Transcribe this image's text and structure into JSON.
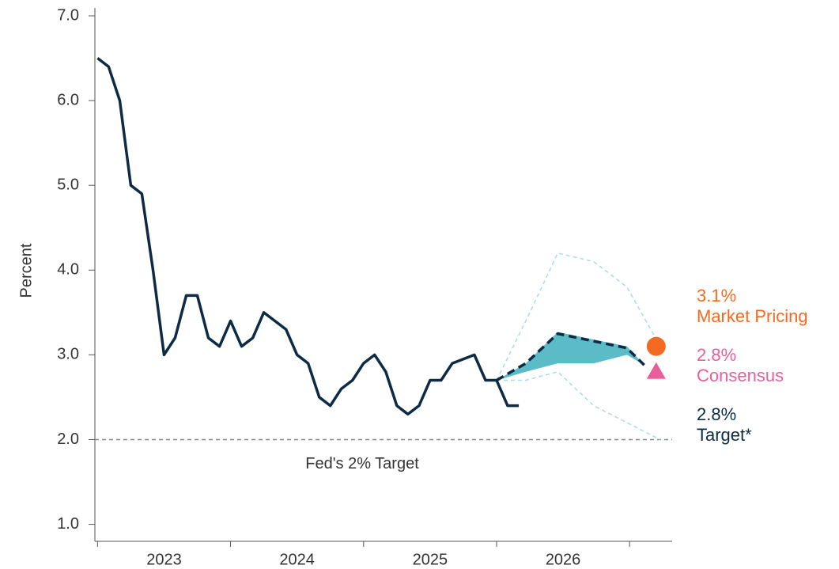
{
  "chart_data": {
    "type": "line",
    "ylabel": "Percent",
    "ylim": [
      0.8,
      7.0
    ],
    "yticks": [
      {
        "value": 1,
        "label": "1.0"
      },
      {
        "value": 2,
        "label": "2.0"
      },
      {
        "value": 3,
        "label": "3.0"
      },
      {
        "value": 4,
        "label": "4.0"
      },
      {
        "value": 5,
        "label": "5.0"
      },
      {
        "value": 6,
        "label": "6.0"
      },
      {
        "value": 7,
        "label": "7.0"
      }
    ],
    "xlim": [
      2022.98,
      2027.32
    ],
    "xticks": [
      2023,
      2024,
      2025,
      2026,
      2027
    ],
    "x_labels": [
      {
        "value": 2023.5,
        "label": "2023"
      },
      {
        "value": 2024.5,
        "label": "2024"
      },
      {
        "value": 2025.5,
        "label": "2025"
      },
      {
        "value": 2026.5,
        "label": "2026"
      }
    ],
    "series": [
      {
        "color": "#0d2b45",
        "dash": false,
        "x": [
          2023.0,
          2023.083,
          2023.167,
          2023.25,
          2023.333,
          2023.417,
          2023.5,
          2023.583,
          2023.667,
          2023.75,
          2023.833,
          2023.917,
          2024.0,
          2024.083,
          2024.167,
          2024.25,
          2024.333,
          2024.417,
          2024.5,
          2024.583,
          2024.667,
          2024.75,
          2024.833,
          2024.917,
          2025.0,
          2025.083,
          2025.167,
          2025.25,
          2025.333,
          2025.417,
          2025.5,
          2025.583,
          2025.667,
          2025.75,
          2025.833,
          2025.917,
          2026.0,
          2026.083,
          2026.167
        ],
        "values": [
          6.5,
          6.4,
          6.0,
          5.0,
          4.9,
          4.0,
          3.0,
          3.2,
          3.7,
          3.7,
          3.2,
          3.1,
          3.4,
          3.1,
          3.2,
          3.5,
          3.4,
          3.3,
          3.0,
          2.9,
          2.5,
          2.4,
          2.6,
          2.7,
          2.9,
          3.0,
          2.8,
          2.4,
          2.3,
          2.4,
          2.7,
          2.7,
          2.9,
          2.95,
          3.0,
          2.7,
          2.7,
          2.4,
          2.4
        ]
      },
      {
        "color": "#0d2b45",
        "dash": true,
        "x": [
          2026.0,
          2026.22,
          2026.46,
          2026.98,
          2027.11
        ],
        "values": [
          2.7,
          2.9,
          3.25,
          3.08,
          2.88
        ]
      }
    ],
    "band": {
      "color": "#5bbcc8",
      "x": [
        2026.0,
        2026.22,
        2026.46,
        2026.73,
        2026.98,
        2027.11
      ],
      "lower": [
        2.7,
        2.8,
        2.9,
        2.9,
        3.0,
        2.88
      ],
      "upper": [
        2.7,
        2.9,
        3.27,
        3.18,
        3.1,
        2.88
      ]
    },
    "range": {
      "color": "#a8dde3",
      "x": [
        2026.0,
        2026.22,
        2026.46,
        2026.73,
        2026.98,
        2027.23
      ],
      "lower": [
        2.7,
        2.7,
        2.8,
        2.4,
        2.2,
        2.0
      ],
      "upper": [
        2.7,
        3.4,
        4.2,
        4.1,
        3.8,
        3.1
      ]
    },
    "target_line": {
      "value": 2.0,
      "label": "Fed's 2% Target",
      "color": "#888888"
    },
    "markers": [
      {
        "shape": "circle",
        "x": 2027.2,
        "value": 3.1,
        "label": "3.1%",
        "text": "Market Pricing",
        "color": "#f26b21"
      },
      {
        "shape": "triangle",
        "x": 2027.2,
        "value": 2.8,
        "label": "2.8%",
        "text": "Consensus",
        "color": "#e8609b"
      }
    ],
    "target_note": {
      "label": "2.8%",
      "text": "Target*",
      "color": "#0d2b45"
    }
  }
}
